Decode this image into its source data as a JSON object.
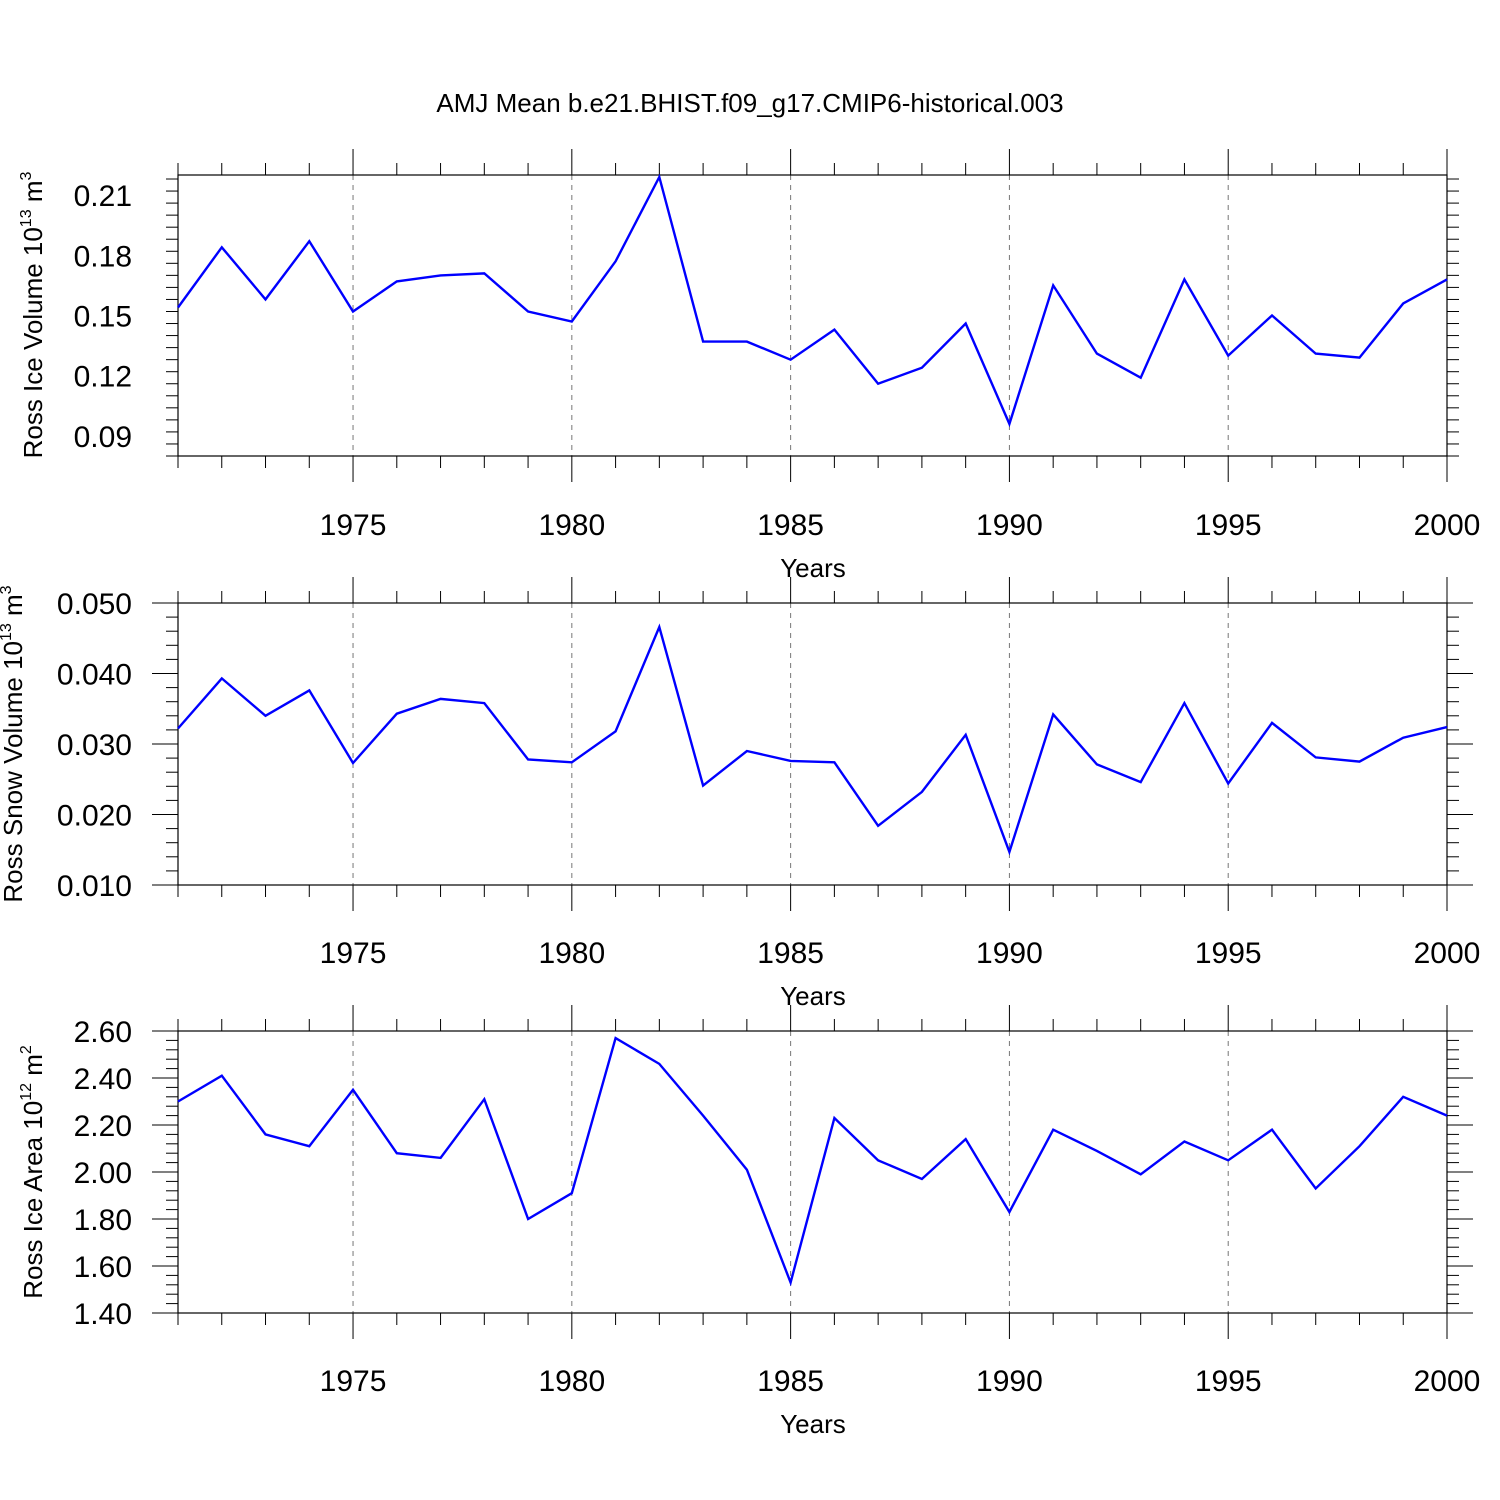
{
  "figure": {
    "title": "AMJ Mean b.e21.BHIST.f09_g17.CMIP6-historical.003",
    "line_color": "#0000ff"
  },
  "chart_data": [
    {
      "type": "line",
      "xlabel": "Years",
      "ylabel": {
        "base": "Ross Ice Volume 10",
        "exp": "13",
        "unit": " m",
        "unit_exp": "3"
      },
      "xlim": [
        1971,
        2000
      ],
      "ylim": [
        0.08,
        0.22
      ],
      "xticks": [
        "1975",
        "1980",
        "1985",
        "1990",
        "1995",
        "2000"
      ],
      "yticks": [
        "0.09",
        "0.12",
        "0.15",
        "0.18",
        "0.21"
      ],
      "grid": "dashed vertical at labeled years",
      "series": [
        {
          "x": [
            1971,
            1972,
            1973,
            1974,
            1975,
            1976,
            1977,
            1978,
            1979,
            1980,
            1981,
            1982,
            1983,
            1984,
            1985,
            1986,
            1987,
            1988,
            1989,
            1990,
            1991,
            1992,
            1993,
            1994,
            1995,
            1996,
            1997,
            1998,
            1999,
            2000
          ],
          "values": [
            0.154,
            0.184,
            0.158,
            0.187,
            0.152,
            0.167,
            0.17,
            0.171,
            0.152,
            0.147,
            0.177,
            0.219,
            0.137,
            0.137,
            0.128,
            0.143,
            0.116,
            0.124,
            0.146,
            0.096,
            0.165,
            0.131,
            0.119,
            0.168,
            0.13,
            0.15,
            0.131,
            0.129,
            0.156,
            0.168
          ]
        }
      ]
    },
    {
      "type": "line",
      "xlabel": "Years",
      "ylabel": {
        "base": "Ross Snow Volume 10",
        "exp": "13",
        "unit": " m",
        "unit_exp": "3"
      },
      "xlim": [
        1971,
        2000
      ],
      "ylim": [
        0.01,
        0.05
      ],
      "xticks": [
        "1975",
        "1980",
        "1985",
        "1990",
        "1995",
        "2000"
      ],
      "yticks": [
        "0.010",
        "0.020",
        "0.030",
        "0.040",
        "0.050"
      ],
      "grid": "dashed vertical at labeled years",
      "series": [
        {
          "x": [
            1971,
            1972,
            1973,
            1974,
            1975,
            1976,
            1977,
            1978,
            1979,
            1980,
            1981,
            1982,
            1983,
            1984,
            1985,
            1986,
            1987,
            1988,
            1989,
            1990,
            1991,
            1992,
            1993,
            1994,
            1995,
            1996,
            1997,
            1998,
            1999,
            2000
          ],
          "values": [
            0.0322,
            0.0393,
            0.034,
            0.0376,
            0.0273,
            0.0343,
            0.0364,
            0.0358,
            0.0278,
            0.0274,
            0.0318,
            0.0466,
            0.0241,
            0.029,
            0.0276,
            0.0274,
            0.0184,
            0.0232,
            0.0313,
            0.0147,
            0.0342,
            0.0271,
            0.0246,
            0.0358,
            0.0244,
            0.033,
            0.0281,
            0.0275,
            0.0309,
            0.0324
          ]
        }
      ]
    },
    {
      "type": "line",
      "xlabel": "Years",
      "ylabel": {
        "base": "Ross Ice Area 10",
        "exp": "12",
        "unit": " m",
        "unit_exp": "2"
      },
      "xlim": [
        1971,
        2000
      ],
      "ylim": [
        1.4,
        2.6
      ],
      "xticks": [
        "1975",
        "1980",
        "1985",
        "1990",
        "1995",
        "2000"
      ],
      "yticks": [
        "1.40",
        "1.60",
        "1.80",
        "2.00",
        "2.20",
        "2.40",
        "2.60"
      ],
      "grid": "dashed vertical at labeled years",
      "series": [
        {
          "x": [
            1971,
            1972,
            1973,
            1974,
            1975,
            1976,
            1977,
            1978,
            1979,
            1980,
            1981,
            1982,
            1983,
            1984,
            1985,
            1986,
            1987,
            1988,
            1989,
            1990,
            1991,
            1992,
            1993,
            1994,
            1995,
            1996,
            1997,
            1998,
            1999,
            2000
          ],
          "values": [
            2.3,
            2.41,
            2.16,
            2.11,
            2.35,
            2.08,
            2.06,
            2.31,
            1.8,
            1.91,
            2.57,
            2.46,
            2.24,
            2.01,
            1.53,
            2.23,
            2.05,
            1.97,
            2.14,
            1.83,
            2.18,
            2.09,
            1.99,
            2.13,
            2.05,
            2.18,
            1.93,
            2.11,
            2.32,
            2.24
          ]
        }
      ]
    }
  ]
}
